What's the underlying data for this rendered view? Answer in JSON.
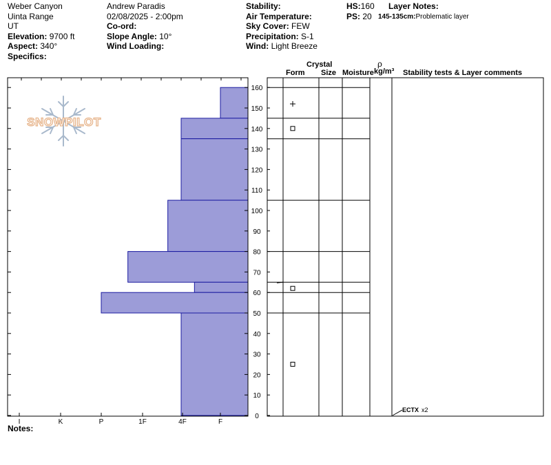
{
  "header": {
    "location": "Weber Canyon",
    "range": "Uinta Range",
    "state": "UT",
    "elevation_label": "Elevation:",
    "elevation": "9700 ft",
    "aspect_label": "Aspect:",
    "aspect": "340°",
    "specifics_label": "Specifics:",
    "observer": "Andrew Paradis",
    "datetime": "02/08/2025 - 2:00pm",
    "coord_label": "Co-ord:",
    "slope_label": "Slope Angle:",
    "slope": "10°",
    "wind_loading_label": "Wind Loading:",
    "stability_label": "Stability:",
    "air_temp_label": "Air Temperature:",
    "sky_label": "Sky Cover:",
    "sky": "FEW",
    "precip_label": "Precipitation:",
    "precip": "S-1",
    "wind_label": "Wind:",
    "wind": "Light Breeze",
    "hs_label": "HS:",
    "hs": "160",
    "ps_label": "PS:",
    "ps": "20",
    "layer_notes_label": "Layer Notes:",
    "layer_note_range": "145-135cm:",
    "layer_note_text": "Problematic layer"
  },
  "logo": {
    "text": "SNOWPILOT"
  },
  "columns": {
    "crystal": "Crystal",
    "form": "Form",
    "size": "Size",
    "moisture": "Moisture",
    "rho": "ρ",
    "density": "kg/m³",
    "stability": "Stability tests & Layer comments"
  },
  "notes_label": "Notes:",
  "chart_data": {
    "type": "bar",
    "orientation": "horizontal",
    "x_categories": [
      "I",
      "K",
      "P",
      "1F",
      "4F",
      "F"
    ],
    "y_ticks": [
      0,
      10,
      20,
      30,
      40,
      50,
      60,
      70,
      80,
      90,
      100,
      110,
      120,
      130,
      140,
      150,
      160
    ],
    "ylim": [
      0,
      160
    ],
    "layers": [
      {
        "top": 160,
        "bottom": 145,
        "hardness": "F"
      },
      {
        "top": 145,
        "bottom": 135,
        "hardness": "4F"
      },
      {
        "top": 135,
        "bottom": 105,
        "hardness": "4F"
      },
      {
        "top": 105,
        "bottom": 80,
        "hardness": "4F+"
      },
      {
        "top": 80,
        "bottom": 65,
        "hardness": "1F+"
      },
      {
        "top": 65,
        "bottom": 60,
        "hardness": "4F-"
      },
      {
        "top": 60,
        "bottom": 50,
        "hardness": "P"
      },
      {
        "top": 50,
        "bottom": 0,
        "hardness": "4F"
      }
    ],
    "grain_forms": [
      {
        "height": 152,
        "symbol": "+"
      },
      {
        "height": 140,
        "symbol": "□"
      },
      {
        "height": 62,
        "symbol": "□"
      },
      {
        "height": 25,
        "symbol": "□"
      }
    ],
    "tests": [
      {
        "height": 2,
        "label": "ECTX",
        "count": "x2"
      }
    ],
    "colors": {
      "bar": "#9c9cd8",
      "bar_edge": "#1a1aa0"
    }
  }
}
